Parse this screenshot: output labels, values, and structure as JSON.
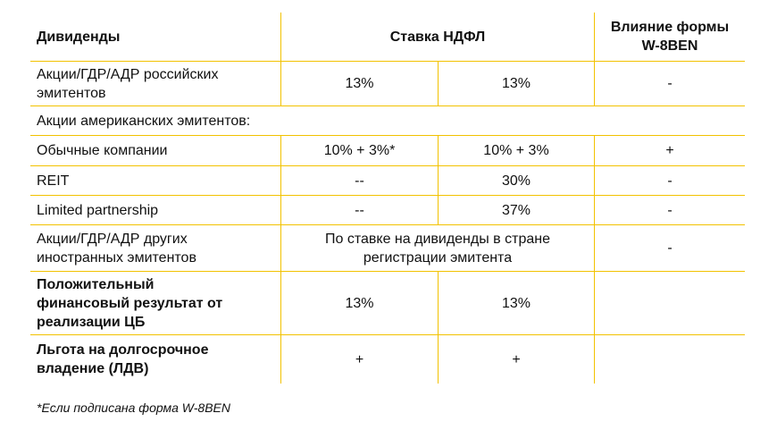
{
  "table": {
    "header": {
      "dividends": "Дивиденды",
      "ndfl_rate": "Ставка НДФЛ",
      "w8ben_line1": "Влияние формы",
      "w8ben_line2": "W-8BEN"
    },
    "rows": [
      {
        "label1": "Акции/ГДР/АДР российских",
        "label2": "эмитентов",
        "c1": "13%",
        "c2": "13%",
        "c3": "-"
      },
      {
        "label": "Акции американских эмитентов:"
      },
      {
        "label": "Обычные компании",
        "c1": "10% + 3%*",
        "c2": "10% + 3%",
        "c3": "+"
      },
      {
        "label": "REIT",
        "c1": "--",
        "c2": "30%",
        "c3": "-"
      },
      {
        "label": "Limited partnership",
        "c1": "--",
        "c2": "37%",
        "c3": "-"
      },
      {
        "label1": "Акции/ГДР/АДР других",
        "label2": "иностранных эмитентов",
        "merged1": "По ставке на дивиденды в стране",
        "merged2": "регистрации эмитента",
        "c3": "-"
      },
      {
        "label1": "Положительный",
        "label2": "финансовый результат от",
        "label3": "реализации ЦБ",
        "c1": "13%",
        "c2": "13%",
        "c3": ""
      },
      {
        "label1": "Льгота на долгосрочное",
        "label2": "владение (ЛДВ)",
        "c1": "+",
        "c2": "+",
        "c3": ""
      }
    ]
  },
  "footnote": "*Если подписана форма W-8BEN",
  "colors": {
    "grid_line": "#f2c200",
    "text": "#111111",
    "background": "#ffffff"
  }
}
